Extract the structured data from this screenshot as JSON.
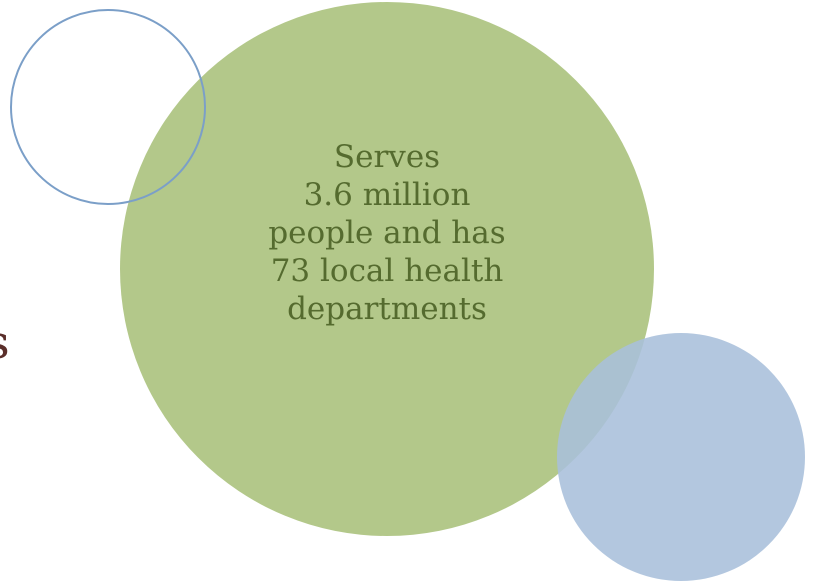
{
  "colors": {
    "green_fill": "#b3c88a",
    "blue_fill": "#a9bfdb",
    "outline_stroke": "#7b9fc8",
    "text": "#556b2f",
    "edge_glyph": "#5a2e2a"
  },
  "bubble": {
    "lines": [
      "Serves",
      "3.6 million",
      "people and has",
      "73 local health",
      "departments"
    ]
  },
  "edge_glyph": "s"
}
